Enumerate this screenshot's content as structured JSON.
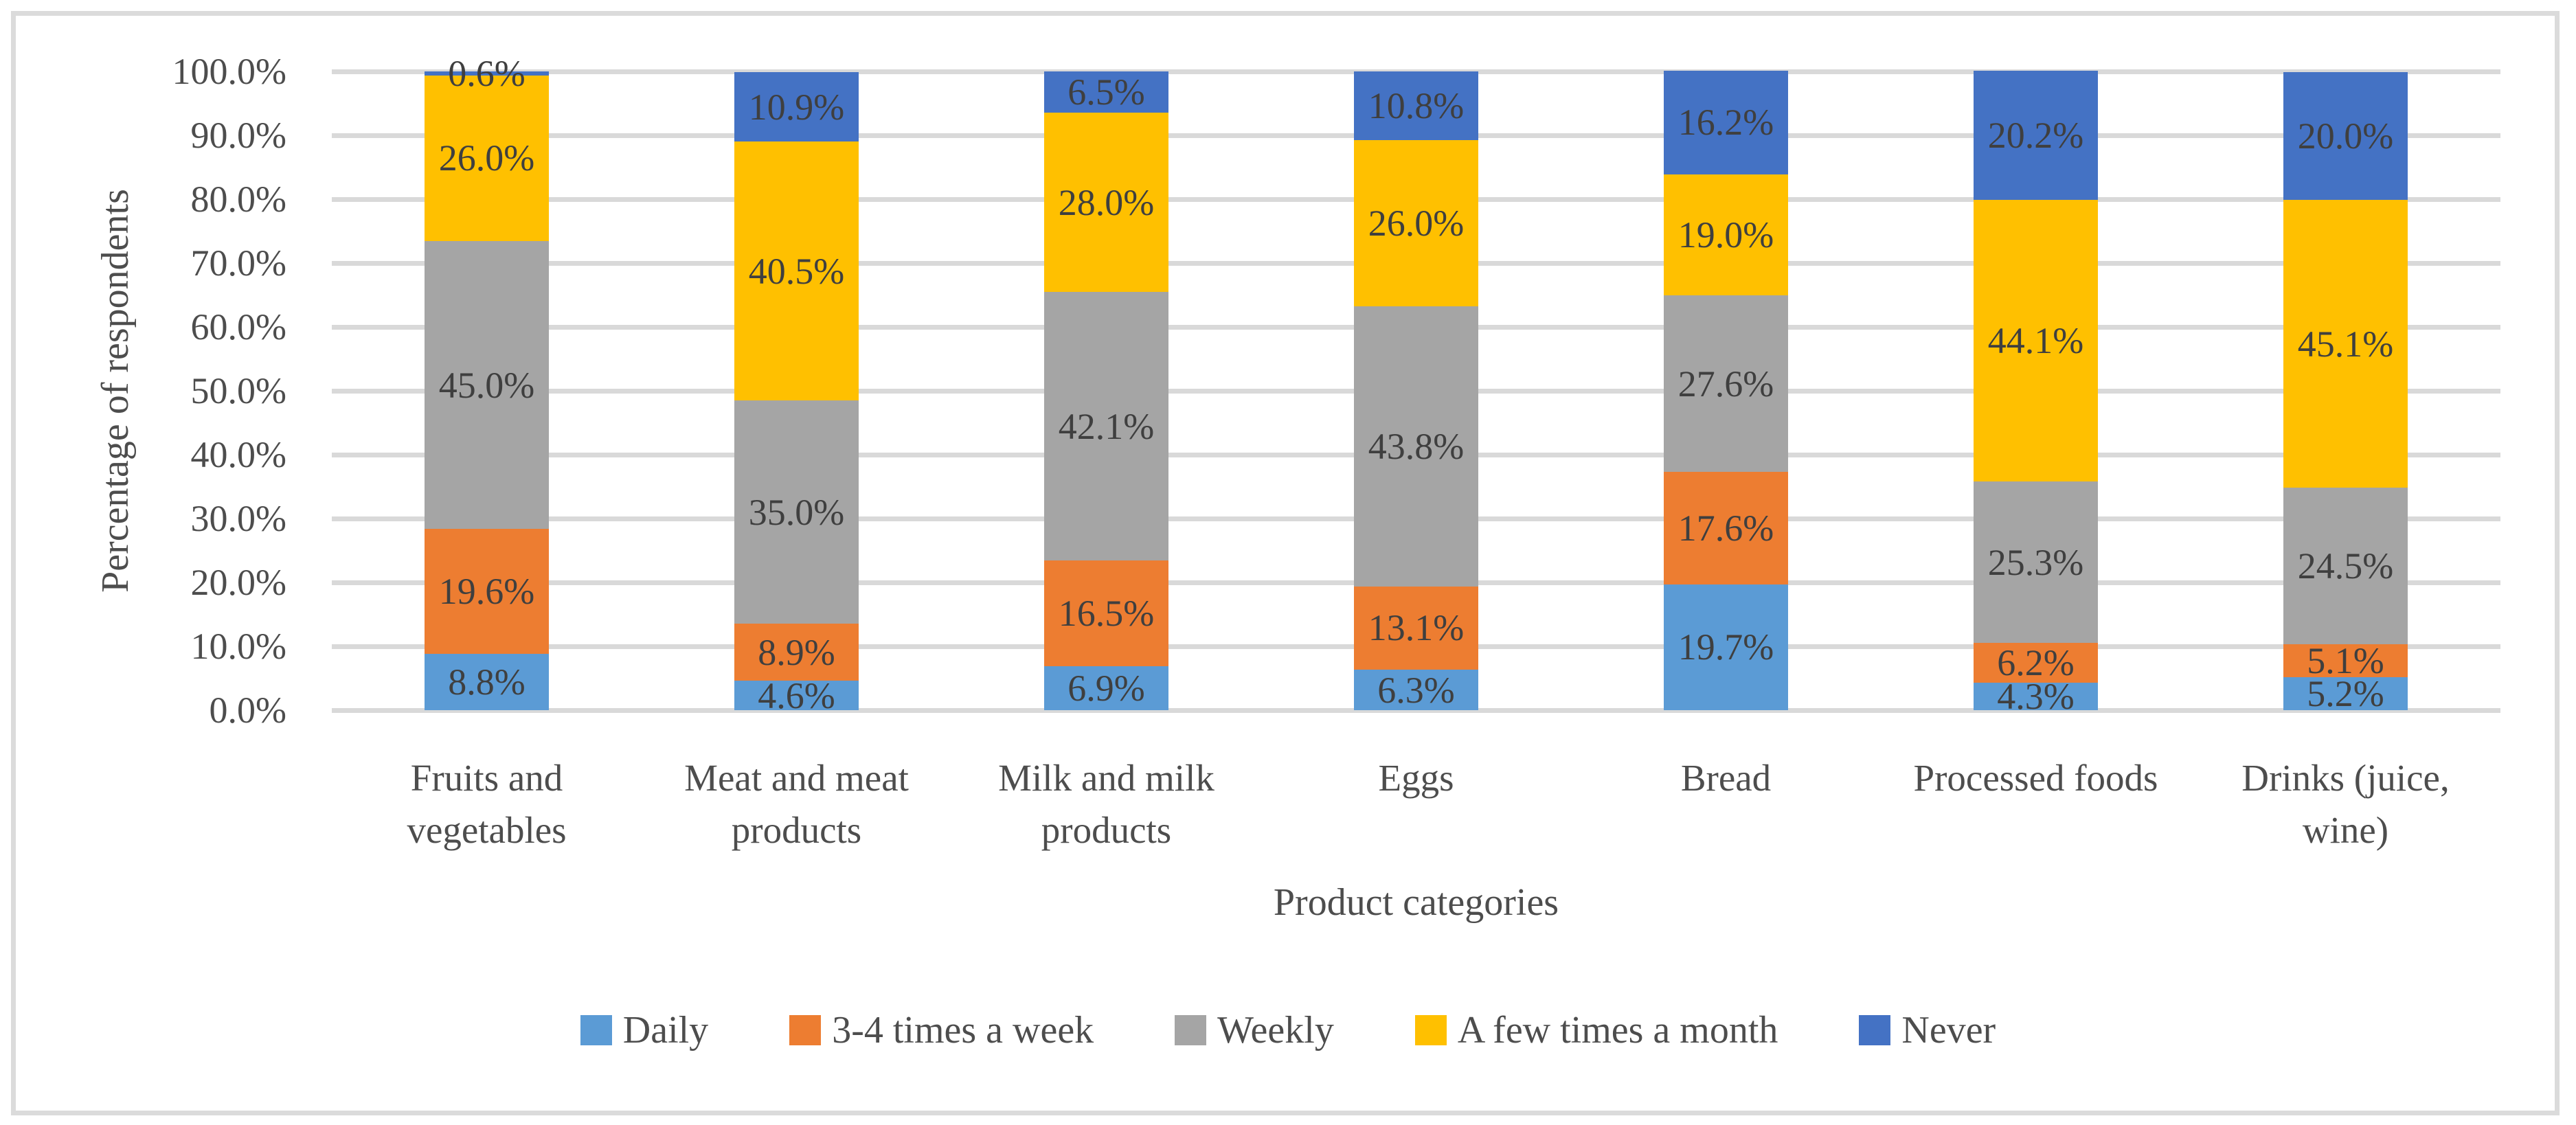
{
  "chart_data": {
    "type": "bar",
    "subtype": "stacked-column-100pct",
    "title": "",
    "x_axis_title": "Product categories",
    "y_axis_title": "Percentage of respondents",
    "y_tick_labels": [
      "0.0%",
      "10.0%",
      "20.0%",
      "30.0%",
      "40.0%",
      "50.0%",
      "60.0%",
      "70.0%",
      "80.0%",
      "90.0%",
      "100.0%"
    ],
    "ylim": [
      0,
      100
    ],
    "grid": true,
    "legend_position": "bottom",
    "categories": [
      "Fruits and\nvegetables",
      "Meat and meat\nproducts",
      "Milk and milk\nproducts",
      "Eggs",
      "Bread",
      "Processed foods",
      "Drinks (juice,\nwine)"
    ],
    "series": [
      {
        "name": "Daily",
        "color": "#5B9BD5",
        "values": [
          8.8,
          4.6,
          6.9,
          6.3,
          19.7,
          4.3,
          5.2
        ]
      },
      {
        "name": "3-4 times a week",
        "color": "#ED7D31",
        "values": [
          19.6,
          8.9,
          16.5,
          13.1,
          17.6,
          6.2,
          5.1
        ]
      },
      {
        "name": "Weekly",
        "color": "#A5A5A5",
        "values": [
          45.0,
          35.0,
          42.1,
          43.8,
          27.6,
          25.3,
          24.5
        ]
      },
      {
        "name": "A few times a month",
        "color": "#FFC000",
        "values": [
          26.0,
          40.5,
          28.0,
          26.0,
          19.0,
          44.1,
          45.1
        ]
      },
      {
        "name": "Never",
        "color": "#4472C4",
        "values": [
          0.6,
          10.9,
          6.5,
          10.8,
          16.2,
          20.2,
          20.0
        ]
      }
    ],
    "data_label_format": "one-decimal-percent"
  },
  "style": {
    "grid_color": "#D9D9D9",
    "frame_border_color": "#DBDBDB",
    "axis_text_color": "#4d4d4d",
    "data_label_color": "#3f3f3f",
    "background": "#FFFFFF"
  }
}
